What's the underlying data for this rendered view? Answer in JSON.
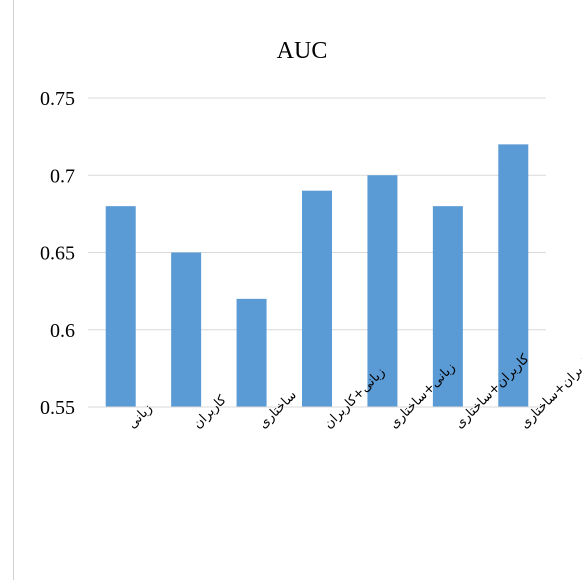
{
  "chart_data": {
    "type": "bar",
    "title": "AUC",
    "xlabel": "",
    "ylabel": "",
    "categories": [
      "زبانی",
      "کاربران",
      "ساختاری",
      "زبانی+کاربران",
      "زبانی+ساختاری",
      "کاربران+ساختاری",
      "زبانی+کاربران+ساختاری"
    ],
    "values": [
      0.68,
      0.65,
      0.62,
      0.69,
      0.7,
      0.68,
      0.72
    ],
    "ylim": [
      0.55,
      0.75
    ],
    "yticks": [
      "0.55",
      "0.6",
      "0.65",
      "0.7",
      "0.75"
    ],
    "grid": true,
    "legend": "none",
    "bar_color": "#5b9bd5",
    "grid_color": "#d9d9d9"
  }
}
